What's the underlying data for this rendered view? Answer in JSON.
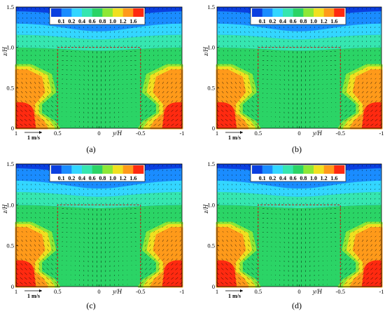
{
  "figure": {
    "colors": [
      "#0a3fe0",
      "#1a8cff",
      "#33d6ff",
      "#36e6b0",
      "#2bd466",
      "#8ee836",
      "#f0e020",
      "#ff9a1a",
      "#ff2a10"
    ],
    "colorbar_labels": [
      "0.1",
      "0.2",
      "0.4",
      "0.6",
      "0.8",
      "1.0",
      "1.2",
      "1.6"
    ],
    "y_ticks": [
      "0",
      "0.5",
      "1.0",
      "1.5"
    ],
    "x_ticks": [
      "1",
      "0.5",
      "0",
      "-0.5",
      "-1"
    ],
    "x_label": "y/H",
    "y_label": "z/H",
    "scale_label": "1 m/s",
    "panels": [
      {
        "caption": "(a)"
      },
      {
        "caption": "(b)"
      },
      {
        "caption": "(c)"
      },
      {
        "caption": "(d)"
      }
    ]
  }
}
